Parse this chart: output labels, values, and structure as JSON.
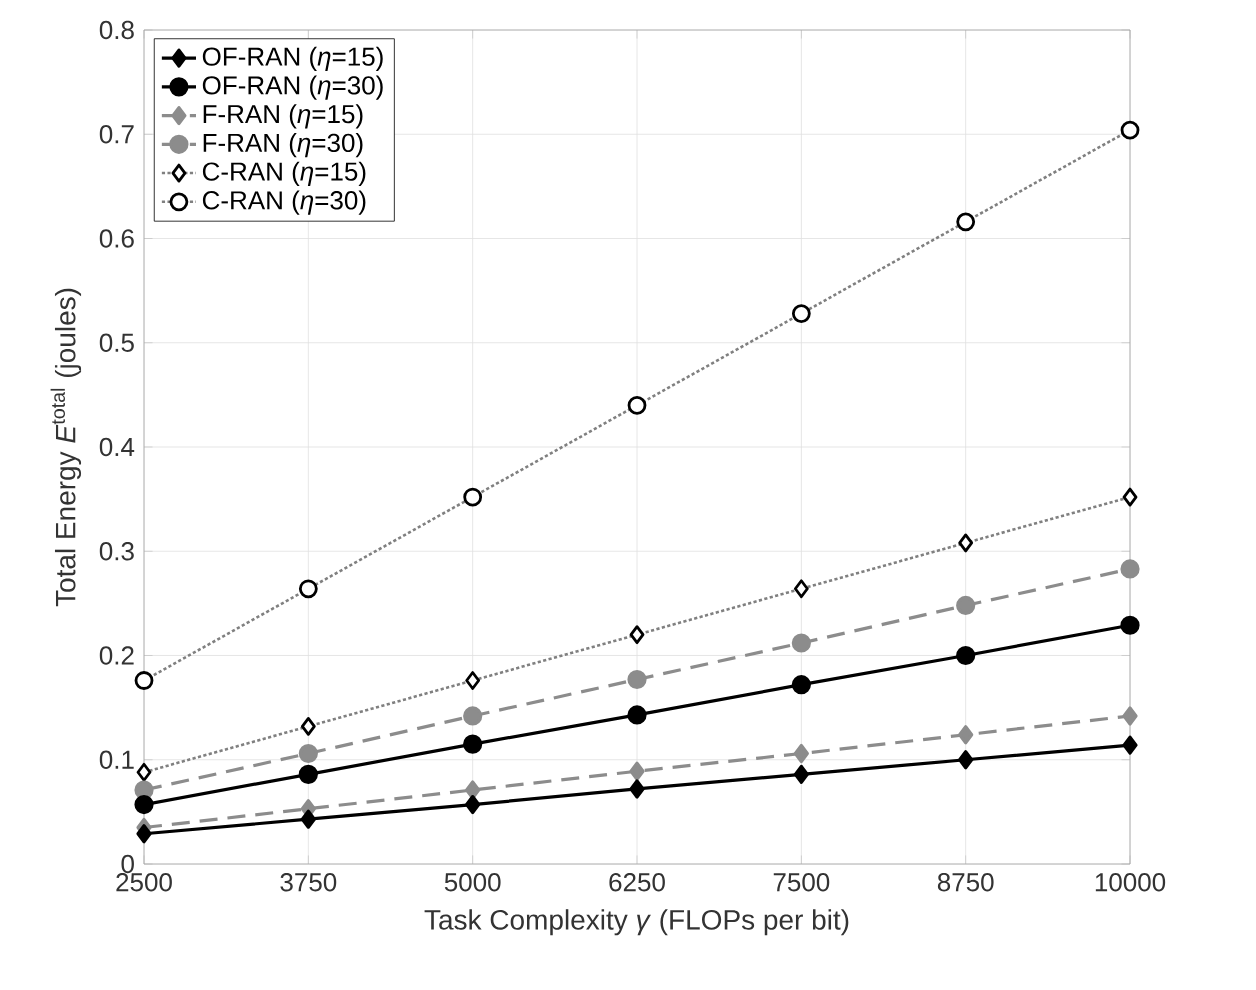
{
  "chart_data": {
    "type": "line",
    "xlabel": "Task Complexity *γ* (FLOPs per bit)",
    "ylabel": "Total Energy *E*$^{total}$ (joules)",
    "x": [
      2500,
      3750,
      5000,
      6250,
      7500,
      8750,
      10000
    ],
    "xlim": [
      2500,
      10000
    ],
    "xticks": [
      2500,
      3750,
      5000,
      6250,
      7500,
      8750,
      10000
    ],
    "ylim": [
      0,
      0.8
    ],
    "yticks": [
      0,
      0.1,
      0.2,
      0.3,
      0.4,
      0.5,
      0.6,
      0.7,
      0.8
    ],
    "grid": true,
    "legend": "top left",
    "series": [
      {
        "name": "OF-RAN  (*η*=15)",
        "color": "#000000",
        "marker": "diamond",
        "line_style": "solid",
        "values": [
          0.029,
          0.043,
          0.057,
          0.072,
          0.086,
          0.1,
          0.114
        ]
      },
      {
        "name": "OF-RAN  (*η*=30)",
        "color": "#000000",
        "marker": "circle",
        "line_style": "solid",
        "values": [
          0.057,
          0.086,
          0.115,
          0.143,
          0.172,
          0.2,
          0.229
        ]
      },
      {
        "name": "F-RAN  (*η*=15)",
        "color": "#8c8c8c",
        "marker": "diamond",
        "line_style": "dashed",
        "values": [
          0.035,
          0.053,
          0.071,
          0.089,
          0.106,
          0.124,
          0.142
        ]
      },
      {
        "name": "F-RAN  (*η*=30)",
        "color": "#8c8c8c",
        "marker": "circle",
        "line_style": "dashed",
        "values": [
          0.071,
          0.106,
          0.142,
          0.177,
          0.212,
          0.248,
          0.283
        ]
      },
      {
        "name": "C-RAN  (*η*=15)",
        "color": "#808080",
        "marker": "diamond",
        "line_style": "dotted",
        "values": [
          0.088,
          0.132,
          0.176,
          0.22,
          0.264,
          0.308,
          0.352
        ]
      },
      {
        "name": "C-RAN  (*η*=30)",
        "color": "#808080",
        "marker": "circle",
        "line_style": "dotted",
        "values": [
          0.176,
          0.264,
          0.352,
          0.44,
          0.528,
          0.616,
          0.704
        ]
      }
    ]
  }
}
